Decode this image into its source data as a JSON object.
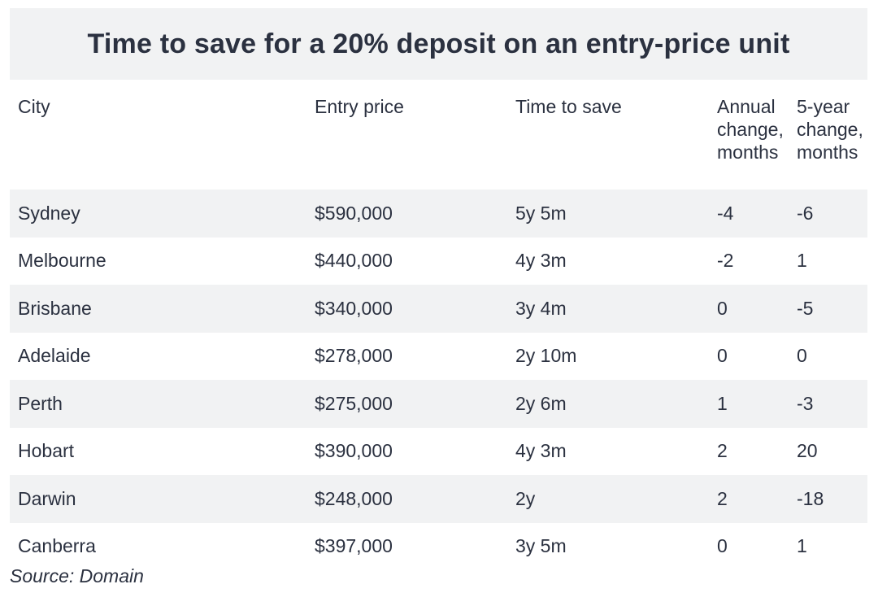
{
  "chart_data": {
    "type": "table",
    "title": "Time to save for a 20% deposit on an entry-price unit",
    "columns": [
      "City",
      "Entry price",
      "Time to save",
      "Annual change, months",
      "5-year change, months"
    ],
    "column_lines": [
      [
        "City"
      ],
      [
        "Entry price"
      ],
      [
        "Time to save"
      ],
      [
        "Annual",
        "change,",
        "months"
      ],
      [
        "5-year",
        "change,",
        "months"
      ]
    ],
    "rows": [
      [
        "Sydney",
        "$590,000",
        "5y 5m",
        "-4",
        "-6"
      ],
      [
        "Melbourne",
        "$440,000",
        "4y 3m",
        "-2",
        "1"
      ],
      [
        "Brisbane",
        "$340,000",
        "3y 4m",
        "0",
        "-5"
      ],
      [
        "Adelaide",
        "$278,000",
        "2y 10m",
        "0",
        "0"
      ],
      [
        "Perth",
        "$275,000",
        "2y 6m",
        "1",
        "-3"
      ],
      [
        "Hobart",
        "$390,000",
        "4y 3m",
        "2",
        "20"
      ],
      [
        "Darwin",
        "$248,000",
        "2y",
        "2",
        "-18"
      ],
      [
        "Canberra",
        "$397,000",
        "3y 5m",
        "0",
        "1"
      ]
    ],
    "source": "Source: Domain"
  },
  "colors": {
    "text": "#2b3140",
    "stripe": "#f1f2f3",
    "background": "#ffffff"
  }
}
